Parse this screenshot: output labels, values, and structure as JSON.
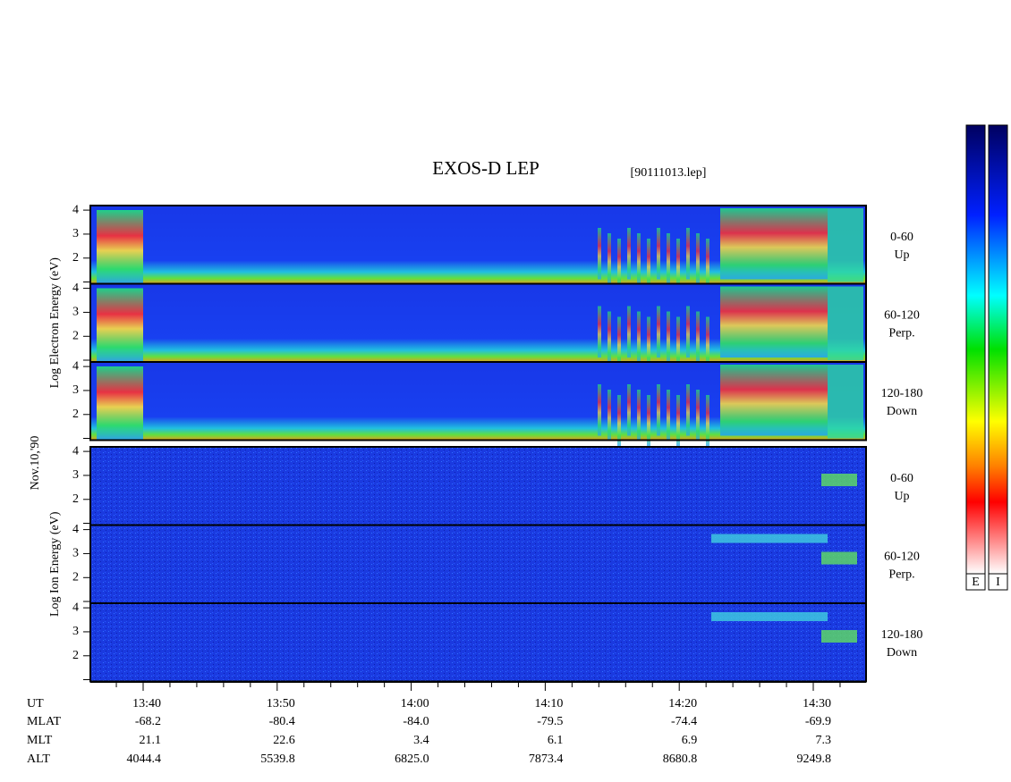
{
  "title": "EXOS-D LEP",
  "file": "[90111013.lep]",
  "date": "Nov.10,'90",
  "ylim": [
    0.93,
    4.19
  ],
  "yticks": [
    2,
    3,
    4
  ],
  "groups": [
    {
      "label": "Log Electron Energy (eV)",
      "channels": [
        {
          "range": "0-60",
          "dir": "Up"
        },
        {
          "range": "60-120",
          "dir": "Perp."
        },
        {
          "range": "120-180",
          "dir": "Down"
        }
      ]
    },
    {
      "label": "Log Ion Energy (eV)",
      "channels": [
        {
          "range": "0-60",
          "dir": "Up"
        },
        {
          "range": "60-120",
          "dir": "Perp."
        },
        {
          "range": "120-180",
          "dir": "Down"
        }
      ]
    }
  ],
  "orbit": [
    {
      "name": "UT",
      "values": [
        "13:40",
        "13:50",
        "14:00",
        "14:10",
        "14:20",
        "14:30"
      ]
    },
    {
      "name": "MLAT",
      "values": [
        "-68.2",
        "-80.4",
        "-84.0",
        "-79.5",
        "-74.4",
        "-69.9"
      ]
    },
    {
      "name": "MLT",
      "values": [
        "21.1",
        "22.6",
        "3.4",
        "6.1",
        "6.9",
        "7.3"
      ]
    },
    {
      "name": "ALT",
      "values": [
        "4044.4",
        "5539.8",
        "6825.0",
        "7873.4",
        "8680.8",
        "9249.8"
      ]
    }
  ],
  "colorbars": [
    "E",
    "I"
  ]
}
